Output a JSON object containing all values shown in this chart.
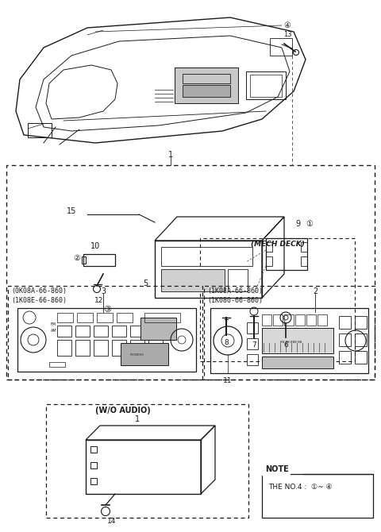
{
  "bg_color": "#ffffff",
  "line_color": "#1a1a1a",
  "fig_width": 4.8,
  "fig_height": 6.7,
  "dpi": 100,
  "part_labels_left": [
    "(0K08A-66-860)",
    "(1K08E-66-860)"
  ],
  "part_labels_right": [
    "(1K08A-66-860)",
    "(1K080-66-860)"
  ],
  "wo_audio_label": "(W/O AUDIO)",
  "mech_deck_label": "(MECH DECK)",
  "note_title": "NOTE",
  "note_text": "THE NO.4 :  ①~ ④"
}
